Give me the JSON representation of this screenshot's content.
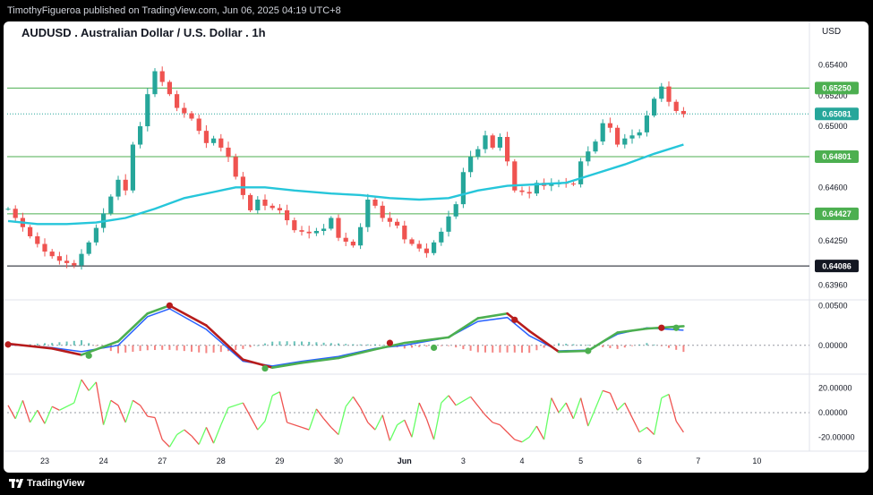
{
  "header": {
    "publisher": "TimothyFigueroa published on TradingView.com, Jun 06, 2025 04:19 UTC+8"
  },
  "chart_title": "AUDUSD . Australian Dollar / U.S. Dollar . 1h",
  "currency": "USD",
  "footer": {
    "brand": "TradingView"
  },
  "colors": {
    "up": "#26a69a",
    "down": "#ef5350",
    "ma": "#26c6da",
    "level": "#4caf50",
    "price_badge": "#26a69a",
    "level_badge": "#4caf50",
    "low_badge": "#131722",
    "macd_line": "#2962ff",
    "signal_up": "#4caf50",
    "signal_down": "#b71c1c",
    "osc_up": "#66ff66",
    "osc_down": "#ef5350"
  },
  "chart_data": [
    {
      "type": "candlestick",
      "x_labels": [
        "23",
        "24",
        "27",
        "28",
        "29",
        "30",
        "Jun",
        "3",
        "4",
        "5",
        "6",
        "7",
        "10"
      ],
      "y_ticks": [
        0.6396,
        0.6425,
        0.646,
        0.65,
        0.652,
        0.654
      ],
      "y_tick_labels": [
        "0.63960",
        "0.64250",
        "0.64600",
        "0.65000",
        "0.65200",
        "0.65400"
      ],
      "ylim": [
        0.6387,
        0.6558
      ],
      "horizontal_levels": [
        {
          "value": 0.6525,
          "label": "0.65250",
          "style": "level"
        },
        {
          "value": 0.64801,
          "label": "0.64801",
          "style": "level"
        },
        {
          "value": 0.64427,
          "label": "0.64427",
          "style": "level"
        },
        {
          "value": 0.64086,
          "label": "0.64086",
          "style": "low"
        }
      ],
      "last_price": {
        "value": 0.65081,
        "label": "0.65081"
      },
      "path": [
        [
          0,
          0.6446
        ],
        [
          3,
          0.6428
        ],
        [
          5,
          0.6418
        ],
        [
          7,
          0.6412
        ],
        [
          9,
          0.6409
        ],
        [
          11,
          0.6424
        ],
        [
          13,
          0.6443
        ],
        [
          15,
          0.6465
        ],
        [
          16,
          0.6458
        ],
        [
          17,
          0.6488
        ],
        [
          18,
          0.65
        ],
        [
          19,
          0.6521
        ],
        [
          20,
          0.6536
        ],
        [
          21,
          0.6529
        ],
        [
          22,
          0.6521
        ],
        [
          23,
          0.6512
        ],
        [
          25,
          0.6505
        ],
        [
          27,
          0.6489
        ],
        [
          28,
          0.6492
        ],
        [
          30,
          0.648
        ],
        [
          31,
          0.6467
        ],
        [
          32,
          0.6455
        ],
        [
          33,
          0.6445
        ],
        [
          34,
          0.6452
        ],
        [
          35,
          0.6448
        ],
        [
          37,
          0.6445
        ],
        [
          39,
          0.6432
        ],
        [
          41,
          0.643
        ],
        [
          43,
          0.6433
        ],
        [
          44,
          0.644
        ],
        [
          45,
          0.6427
        ],
        [
          47,
          0.6422
        ],
        [
          48,
          0.6434
        ],
        [
          49,
          0.6452
        ],
        [
          50,
          0.6448
        ],
        [
          51,
          0.644
        ],
        [
          53,
          0.6435
        ],
        [
          54,
          0.6426
        ],
        [
          56,
          0.642
        ],
        [
          57,
          0.6417
        ],
        [
          59,
          0.6431
        ],
        [
          60,
          0.6441
        ],
        [
          61,
          0.6449
        ],
        [
          62,
          0.647
        ],
        [
          63,
          0.648
        ],
        [
          64,
          0.6485
        ],
        [
          65,
          0.6494
        ],
        [
          66,
          0.6486
        ],
        [
          67,
          0.6493
        ],
        [
          68,
          0.6477
        ],
        [
          69,
          0.6458
        ],
        [
          71,
          0.6456
        ],
        [
          72,
          0.6463
        ],
        [
          73,
          0.6461
        ],
        [
          75,
          0.6463
        ],
        [
          77,
          0.6462
        ],
        [
          78,
          0.6477
        ],
        [
          80,
          0.649
        ],
        [
          81,
          0.6502
        ],
        [
          82,
          0.6499
        ],
        [
          83,
          0.6488
        ],
        [
          84,
          0.6492
        ],
        [
          86,
          0.6496
        ],
        [
          87,
          0.6507
        ],
        [
          88,
          0.6518
        ],
        [
          89,
          0.6526
        ],
        [
          90,
          0.6516
        ],
        [
          91,
          0.651
        ],
        [
          92,
          0.6508
        ]
      ],
      "ma_points": [
        [
          0,
          0.6438
        ],
        [
          4,
          0.6436
        ],
        [
          8,
          0.6436
        ],
        [
          12,
          0.6437
        ],
        [
          16,
          0.644
        ],
        [
          20,
          0.6446
        ],
        [
          24,
          0.6453
        ],
        [
          28,
          0.6457
        ],
        [
          31,
          0.646
        ],
        [
          35,
          0.646
        ],
        [
          39,
          0.6458
        ],
        [
          44,
          0.6456
        ],
        [
          48,
          0.6455
        ],
        [
          52,
          0.6453
        ],
        [
          56,
          0.6452
        ],
        [
          60,
          0.6453
        ],
        [
          64,
          0.6458
        ],
        [
          68,
          0.6461
        ],
        [
          72,
          0.6462
        ],
        [
          76,
          0.6463
        ],
        [
          80,
          0.6469
        ],
        [
          84,
          0.6475
        ],
        [
          88,
          0.6482
        ],
        [
          92,
          0.6488
        ]
      ]
    },
    {
      "type": "line",
      "name": "",
      "y_ticks": [
        0,
        0.005
      ],
      "y_tick_labels": [
        "0.00000",
        "0.00500"
      ],
      "ylim": [
        -0.0034,
        0.0056
      ],
      "series": [
        {
          "role": "macd",
          "points": [
            [
              0,
              0.0001
            ],
            [
              6,
              -0.0003
            ],
            [
              10,
              -0.0008
            ],
            [
              15,
              0.0
            ],
            [
              19,
              0.0036
            ],
            [
              22,
              0.0046
            ],
            [
              27,
              0.002
            ],
            [
              32,
              -0.002
            ],
            [
              36,
              -0.0026
            ],
            [
              40,
              -0.002
            ],
            [
              45,
              -0.0014
            ],
            [
              50,
              -0.0004
            ],
            [
              54,
              0.0
            ],
            [
              60,
              0.001
            ],
            [
              64,
              0.003
            ],
            [
              68,
              0.0035
            ],
            [
              71,
              0.0012
            ],
            [
              75,
              -0.0007
            ],
            [
              79,
              -0.0006
            ],
            [
              83,
              0.0014
            ],
            [
              87,
              0.0022
            ],
            [
              92,
              0.0019
            ]
          ]
        },
        {
          "role": "signal",
          "points": [
            [
              0,
              0.0002
            ],
            [
              6,
              -0.0004
            ],
            [
              10,
              -0.0012
            ],
            [
              15,
              0.0005
            ],
            [
              19,
              0.004
            ],
            [
              22,
              0.005
            ],
            [
              27,
              0.0025
            ],
            [
              32,
              -0.0018
            ],
            [
              36,
              -0.0028
            ],
            [
              40,
              -0.0022
            ],
            [
              45,
              -0.0016
            ],
            [
              50,
              -0.0005
            ],
            [
              54,
              0.0003
            ],
            [
              60,
              0.001
            ],
            [
              64,
              0.0034
            ],
            [
              68,
              0.004
            ],
            [
              71,
              0.0018
            ],
            [
              75,
              -0.0008
            ],
            [
              79,
              -0.0007
            ],
            [
              83,
              0.0016
            ],
            [
              87,
              0.0021
            ],
            [
              92,
              0.0024
            ]
          ]
        }
      ],
      "cross_points": [
        [
          0,
          0.0001,
          "down"
        ],
        [
          11,
          -0.0013,
          "up"
        ],
        [
          22,
          0.005,
          "down"
        ],
        [
          35,
          -0.0029,
          "up"
        ],
        [
          52,
          0.0003,
          "down"
        ],
        [
          58,
          -0.0003,
          "up"
        ],
        [
          69,
          0.0032,
          "down"
        ],
        [
          79,
          -0.0007,
          "up"
        ],
        [
          89,
          0.0022,
          "down"
        ],
        [
          91,
          0.0022,
          "up"
        ]
      ],
      "histogram_max": 0.0011
    },
    {
      "type": "line",
      "name": "",
      "y_ticks": [
        20,
        0,
        -20
      ],
      "y_tick_labels": [
        "20.00000",
        "0.00000",
        "-20.00000"
      ],
      "ylim": [
        -30,
        30
      ],
      "points": [
        [
          0,
          6
        ],
        [
          1,
          -5
        ],
        [
          2,
          10
        ],
        [
          3,
          -8
        ],
        [
          4,
          2
        ],
        [
          5,
          -9
        ],
        [
          6,
          5
        ],
        [
          7,
          2
        ],
        [
          9,
          8
        ],
        [
          10,
          27
        ],
        [
          11,
          18
        ],
        [
          12,
          25
        ],
        [
          13,
          -10
        ],
        [
          14,
          10
        ],
        [
          15,
          6
        ],
        [
          16,
          -8
        ],
        [
          17,
          10
        ],
        [
          18,
          6
        ],
        [
          19,
          -3
        ],
        [
          20,
          -4
        ],
        [
          21,
          -22
        ],
        [
          22,
          -28
        ],
        [
          23,
          -18
        ],
        [
          24,
          -14
        ],
        [
          25,
          -19
        ],
        [
          26,
          -26
        ],
        [
          27,
          -12
        ],
        [
          28,
          -25
        ],
        [
          29,
          -10
        ],
        [
          30,
          4
        ],
        [
          32,
          8
        ],
        [
          34,
          -14
        ],
        [
          35,
          -7
        ],
        [
          36,
          14
        ],
        [
          37,
          17
        ],
        [
          38,
          -8
        ],
        [
          40,
          -12
        ],
        [
          41,
          -14
        ],
        [
          42,
          3
        ],
        [
          43,
          -5
        ],
        [
          44,
          -12
        ],
        [
          45,
          -18
        ],
        [
          46,
          5
        ],
        [
          47,
          13
        ],
        [
          48,
          4
        ],
        [
          49,
          -8
        ],
        [
          50,
          -14
        ],
        [
          51,
          -2
        ],
        [
          52,
          -23
        ],
        [
          53,
          -10
        ],
        [
          54,
          -6
        ],
        [
          55,
          -20
        ],
        [
          56,
          8
        ],
        [
          57,
          -5
        ],
        [
          58,
          -22
        ],
        [
          59,
          8
        ],
        [
          60,
          14
        ],
        [
          61,
          6
        ],
        [
          63,
          13
        ],
        [
          65,
          -2
        ],
        [
          66,
          -8
        ],
        [
          67,
          -10
        ],
        [
          68,
          -16
        ],
        [
          69,
          -22
        ],
        [
          70,
          -24
        ],
        [
          71,
          -20
        ],
        [
          72,
          -11
        ],
        [
          73,
          -22
        ],
        [
          74,
          12
        ],
        [
          75,
          0
        ],
        [
          76,
          8
        ],
        [
          77,
          -5
        ],
        [
          78,
          12
        ],
        [
          79,
          -11
        ],
        [
          81,
          18
        ],
        [
          82,
          16
        ],
        [
          83,
          2
        ],
        [
          84,
          8
        ],
        [
          85,
          -4
        ],
        [
          86,
          -16
        ],
        [
          87,
          -12
        ],
        [
          88,
          -18
        ],
        [
          89,
          12
        ],
        [
          90,
          15
        ],
        [
          91,
          -7
        ],
        [
          92,
          -16
        ]
      ]
    }
  ]
}
